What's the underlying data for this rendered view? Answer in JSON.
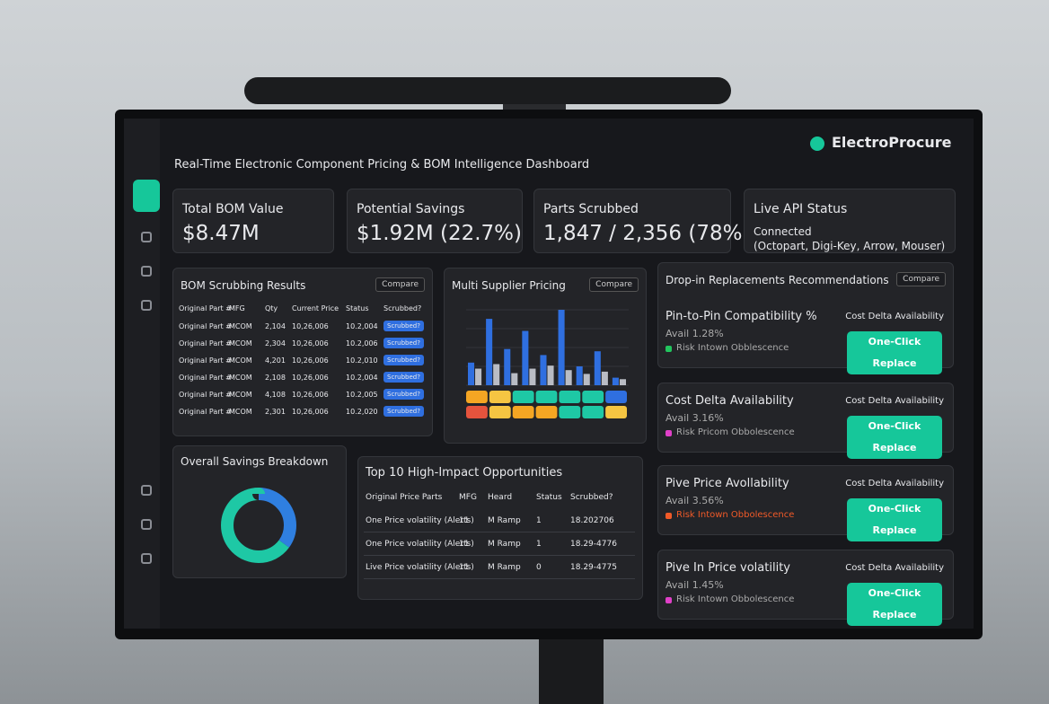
{
  "brand": "ElectroProcure",
  "header": {
    "title": "Real-Time Electronic Component Pricing & BOM Intelligence Dashboard"
  },
  "kpis": [
    {
      "label": "Total BOM Value",
      "value": "$8.47M"
    },
    {
      "label": "Potential Savings",
      "value": "$1.92M (22.7%)"
    },
    {
      "label": "Parts Scrubbed",
      "value": "1,847 / 2,356 (78%)"
    },
    {
      "label": "Live API Status",
      "value": "Connected",
      "detail": "(Octopart, Digi-Key, Arrow, Mouser)"
    }
  ],
  "bom": {
    "title": "BOM Scrubbing Results",
    "dropdown": "Compare",
    "columns": [
      "Original Part #",
      "MFG",
      "Qty",
      "Current Price",
      "Status",
      "Scrubbed?"
    ],
    "rows": [
      [
        "Original Part #",
        "MCOM",
        "2,104",
        "10,26,006",
        "10.2,004",
        "Scrubbed?"
      ],
      [
        "Original Part #",
        "MCOM",
        "2,304",
        "10,26,006",
        "10.2,006",
        "Scrubbed?"
      ],
      [
        "Original Part #",
        "MCOM",
        "4,201",
        "10,26,006",
        "10.2,010",
        "Scrubbed?"
      ],
      [
        "Original Part #",
        "MCOM",
        "2,108",
        "10,26,006",
        "10.2,004",
        "Scrubbed?"
      ],
      [
        "Original Part #",
        "MCOM",
        "4,108",
        "10,26,006",
        "10.2,005",
        "Scrubbed?"
      ],
      [
        "Original Part #",
        "MCOM",
        "2,301",
        "10,26,006",
        "10.2,020",
        "Scrubbed?"
      ]
    ]
  },
  "supplier": {
    "title": "Multi Supplier Pricing",
    "dropdown": "Compare",
    "ylim": [
      0,
      100
    ],
    "series": [
      {
        "color": "#2f6fe0",
        "values": [
          30,
          88,
          48,
          72,
          40,
          100,
          25,
          45,
          10
        ]
      },
      {
        "color": "#b9bcc4",
        "values": [
          22,
          28,
          16,
          22,
          26,
          20,
          15,
          18,
          8
        ]
      }
    ]
  },
  "savings": {
    "title": "Overall Savings Breakdown",
    "segments": [
      {
        "color": "#2f7fe0",
        "value": 35
      },
      {
        "color": "#1ec8a5",
        "value": 65
      }
    ]
  },
  "top10": {
    "title": "Top 10 High-Impact Opportunities",
    "columns": [
      "Original Price Parts",
      "MFG",
      "Heard",
      "Status",
      "Scrubbed?"
    ],
    "rows": [
      [
        "One Price volatility (Alerts)",
        "11",
        "M Ramp",
        "1",
        "18.202706"
      ],
      [
        "One Price volatility (Alerts)",
        "11",
        "M Ramp",
        "1",
        "18.29-4776"
      ],
      [
        "Live Price volatility (Alerts)",
        "11",
        "M Ramp",
        "0",
        "18.29-4775"
      ]
    ]
  },
  "replacements": {
    "title": "Drop-in Replacements Recommendations",
    "dropdown": "Compare",
    "cards": [
      {
        "title": "Pin-to-Pin Compatibility %",
        "right": "Cost Delta Availability",
        "avail": "Avail 1.28%",
        "risk": "Risk Intown Obblescence",
        "risk_color": "#22c55e",
        "button": "One-Click Replace"
      },
      {
        "title": "Cost Delta Availability",
        "right": "Cost Delta Availability",
        "avail": "Avail 3.16%",
        "risk": "Risk Pricom Obbolescence",
        "risk_color": "#e040c8",
        "button": "One-Click Replace"
      },
      {
        "title": "Pive Price Avollability",
        "right": "Cost Delta Availability",
        "avail": "Avail 3.56%",
        "risk": "Risk Intown Obbolescence",
        "risk_color": "#f05a28",
        "button": "One-Click Replace"
      },
      {
        "title": "Pive In Price volatility",
        "right": "Cost Delta Availability",
        "avail": "Avail 1.45%",
        "risk": "Risk Intown Obbolescence",
        "risk_color": "#e040c8",
        "button": "One-Click Replace"
      }
    ]
  }
}
